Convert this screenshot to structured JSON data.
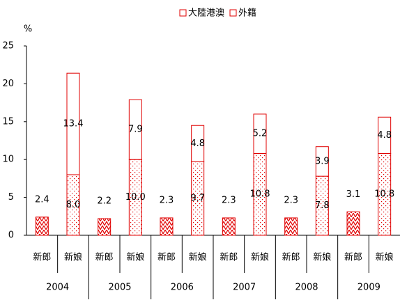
{
  "chart_data": {
    "type": "stacked-bar",
    "y_label": "%",
    "groups": [
      "2004",
      "2005",
      "2006",
      "2007",
      "2008",
      "2009"
    ],
    "categories": [
      "新郎",
      "新娘",
      "新郎",
      "新娘",
      "新郎",
      "新娘",
      "新郎",
      "新娘",
      "新郎",
      "新娘",
      "新郎",
      "新娘"
    ],
    "series": [
      {
        "color": "#e00000",
        "pattern": "zigzag",
        "values": [
          2.4,
          null,
          2.2,
          null,
          2.3,
          null,
          2.3,
          null,
          2.3,
          null,
          3.1,
          null
        ]
      },
      {
        "name": "大陸港澳",
        "color": "#e00000",
        "pattern": "dots",
        "values": [
          null,
          8.0,
          null,
          10.0,
          null,
          9.7,
          null,
          10.8,
          null,
          7.8,
          null,
          10.8
        ],
        "value_labels": [
          null,
          "8.0",
          null,
          "10.0",
          null,
          "9.7",
          null,
          "10.8",
          null,
          "7.8",
          null,
          "10.8"
        ]
      },
      {
        "name": "外籍",
        "color": "#e00000",
        "pattern": "none",
        "values": [
          null,
          13.4,
          null,
          7.9,
          null,
          4.8,
          null,
          5.2,
          null,
          3.9,
          null,
          4.8
        ],
        "value_labels": [
          null,
          "13.4",
          null,
          "7.9",
          null,
          "4.8",
          null,
          "5.2",
          null,
          "3.9",
          null,
          "4.8"
        ]
      }
    ],
    "ylim": [
      0,
      25
    ],
    "yticks": [
      0,
      5,
      10,
      15,
      20,
      25
    ],
    "grid": false,
    "legend": "top"
  }
}
